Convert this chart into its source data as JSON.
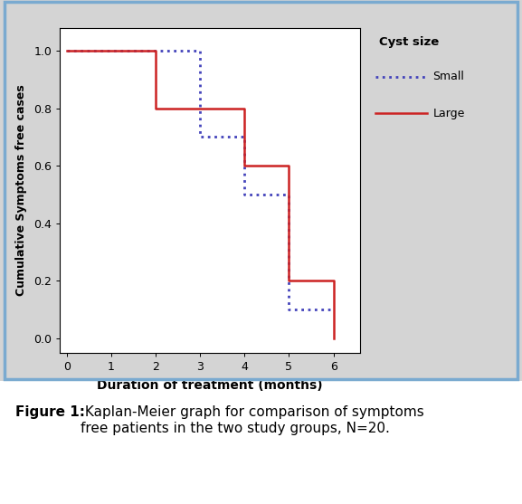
{
  "small_x": [
    0,
    2,
    2,
    3,
    3,
    4,
    4,
    5,
    5,
    6
  ],
  "small_y": [
    1.0,
    1.0,
    1.0,
    1.0,
    0.7,
    0.7,
    0.5,
    0.5,
    0.1,
    0.1
  ],
  "large_x": [
    0,
    2,
    2,
    4,
    4,
    5,
    5,
    6,
    6
  ],
  "large_y": [
    1.0,
    1.0,
    0.8,
    0.8,
    0.6,
    0.6,
    0.2,
    0.2,
    0.0
  ],
  "small_color": "#4444bb",
  "large_color": "#cc2222",
  "small_label": "Small",
  "large_label": "Large",
  "legend_title": "Cyst size",
  "xlabel": "Duration of treatment (months)",
  "ylabel": "Cumulative Symptoms free cases",
  "xlim": [
    -0.15,
    6.6
  ],
  "ylim": [
    -0.05,
    1.08
  ],
  "xticks": [
    0,
    1,
    2,
    3,
    4,
    5,
    6
  ],
  "yticks": [
    0.0,
    0.2,
    0.4,
    0.6,
    0.8,
    1.0
  ],
  "bg_outer": "#d4d4d4",
  "bg_inner": "#ffffff",
  "outer_border_color": "#7aaad0",
  "inner_border_color": "#7aaad0",
  "caption_bold": "Figure 1:",
  "caption_normal": " Kaplan-Meier graph for comparison of symptoms\nfree patients in the two study groups, N=20."
}
